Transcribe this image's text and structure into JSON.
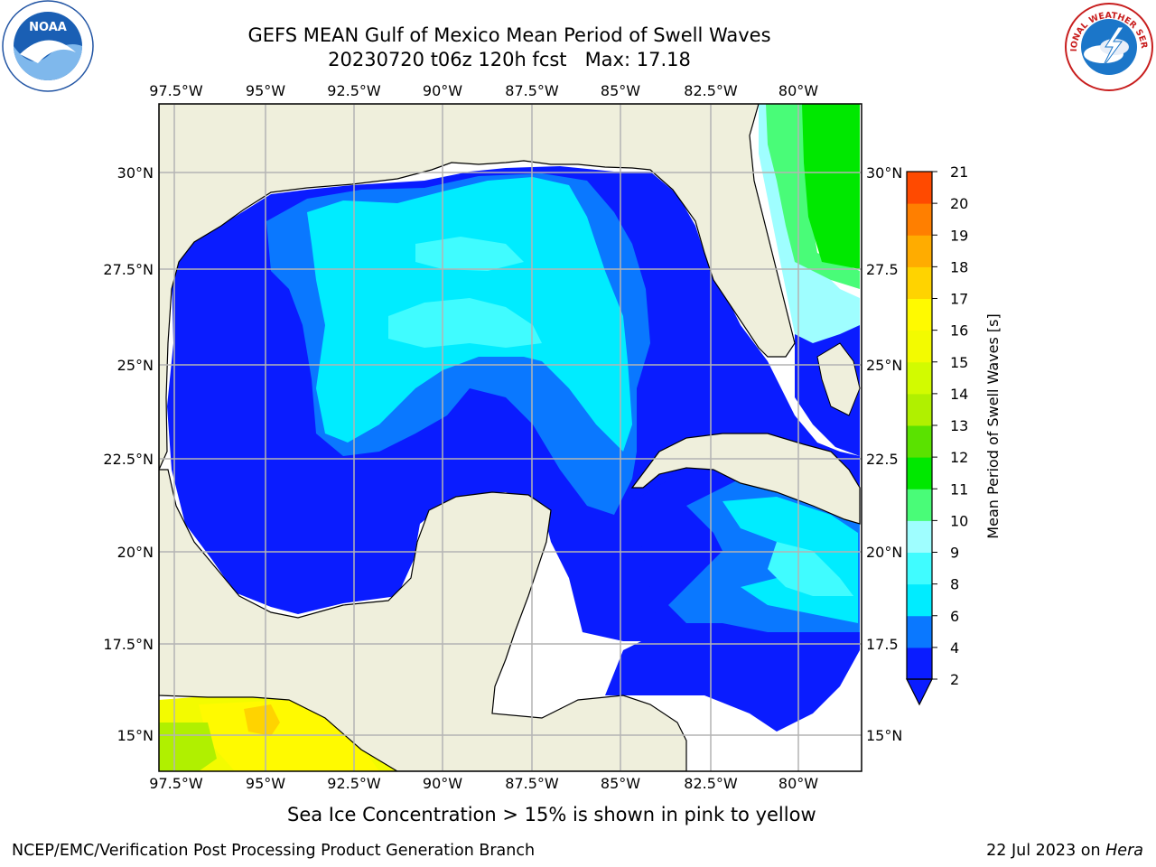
{
  "header": {
    "title_line1": "GEFS MEAN Gulf of Mexico Mean Period of Swell Waves",
    "title_line2": "20230720 t06z 120h fcst   Max: 17.18"
  },
  "logos": {
    "left": "noaa-logo",
    "left_text": "NOAA",
    "right": "nws-logo",
    "right_text": "NATIONAL WEATHER SERVICE"
  },
  "map": {
    "lon_labels": [
      "97.5°W",
      "95°W",
      "92.5°W",
      "90°W",
      "87.5°W",
      "85°W",
      "82.5°W",
      "80°W"
    ],
    "lat_labels_left": [
      "30°N",
      "27.5°N",
      "25°N",
      "22.5°N",
      "20°N",
      "17.5°N",
      "15°N"
    ],
    "lat_labels_right": [
      "30°N",
      "27.5",
      "25°N",
      "22.5",
      "20°N",
      "17.5",
      "15°N"
    ]
  },
  "colorbar": {
    "label": "Mean Period of Swell Waves [s]",
    "ticks": [
      "2",
      "4",
      "6",
      "8",
      "9",
      "10",
      "11",
      "12",
      "13",
      "14",
      "15",
      "16",
      "17",
      "18",
      "19",
      "20",
      "21"
    ],
    "colors": [
      "#0a1cff",
      "#0a78ff",
      "#00ecff",
      "#40fcff",
      "#9ffeff",
      "#49fc78",
      "#00e800",
      "#5ae200",
      "#b0f000",
      "#d2fb00",
      "#f3fb00",
      "#fffa00",
      "#ffd300",
      "#ffac00",
      "#ff7f00",
      "#ff4a00",
      "#ff1a00",
      "#ff0000"
    ]
  },
  "caption": "Sea Ice Concentration > 15% is shown in pink to yellow",
  "footer": {
    "left": "NCEP/EMC/Verification Post Processing Product Generation Branch",
    "right_prefix": "22 Jul 2023 on",
    "right_host": "Hera"
  }
}
